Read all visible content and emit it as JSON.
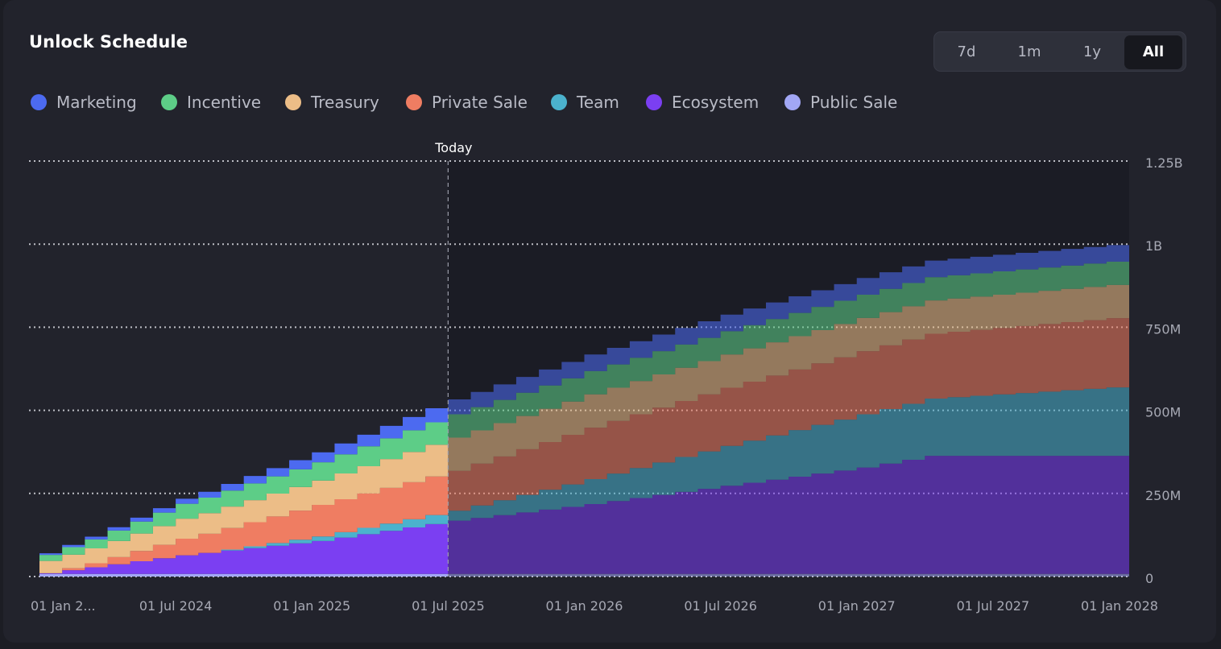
{
  "chart_data": {
    "type": "area",
    "title": "Unlock Schedule",
    "range_options": [
      "7d",
      "1m",
      "1y",
      "All"
    ],
    "range_selected": "All",
    "today_label": "Today",
    "today_date": "2025-07-01",
    "step": "monthly",
    "x_start": "2024-01-01",
    "x_end": "2028-01-01",
    "x_ticks": [
      "01 Jan 2...",
      "01 Jul 2024",
      "01 Jan 2025",
      "01 Jul 2025",
      "01 Jan 2026",
      "01 Jul 2026",
      "01 Jan 2027",
      "01 Jul 2027",
      "01 Jan 2028"
    ],
    "y_ticks": [
      "0",
      "250M",
      "500M",
      "750M",
      "1B",
      "1.25B"
    ],
    "y_tick_values": [
      0,
      250000000,
      500000000,
      750000000,
      1000000000,
      1250000000
    ],
    "ylim": [
      0,
      1250000000
    ],
    "grid": true,
    "legend_position": "top-left",
    "series": [
      {
        "name": "Public Sale",
        "color": "#a2a7f5",
        "points": [
          [
            "2024-01-01",
            8000000
          ],
          [
            "2028-01-01",
            8000000
          ]
        ]
      },
      {
        "name": "Ecosystem",
        "color": "#7b3ff2",
        "points": [
          [
            "2024-01-01",
            2000000
          ],
          [
            "2024-07-01",
            56000000
          ],
          [
            "2025-01-01",
            99000000
          ],
          [
            "2025-07-01",
            160000000
          ],
          [
            "2026-01-01",
            210000000
          ],
          [
            "2026-07-01",
            265000000
          ],
          [
            "2027-01-01",
            320000000
          ],
          [
            "2027-04-01",
            355000000
          ],
          [
            "2028-01-01",
            355000000
          ]
        ]
      },
      {
        "name": "Team",
        "color": "#4bb2cd",
        "points": [
          [
            "2024-01-01",
            0
          ],
          [
            "2024-08-01",
            0
          ],
          [
            "2025-07-01",
            30000000
          ],
          [
            "2026-01-01",
            75000000
          ],
          [
            "2026-07-01",
            120000000
          ],
          [
            "2027-01-01",
            160000000
          ],
          [
            "2028-01-01",
            210000000
          ]
        ]
      },
      {
        "name": "Private Sale",
        "color": "#ef7d62",
        "points": [
          [
            "2024-01-01",
            0
          ],
          [
            "2024-03-01",
            12000000
          ],
          [
            "2024-07-01",
            50000000
          ],
          [
            "2025-01-01",
            95000000
          ],
          [
            "2025-07-01",
            120000000
          ],
          [
            "2026-01-01",
            155000000
          ],
          [
            "2026-07-01",
            175000000
          ],
          [
            "2027-01-01",
            190000000
          ],
          [
            "2028-01-01",
            210000000
          ]
        ]
      },
      {
        "name": "Treasury",
        "color": "#ecbd87",
        "points": [
          [
            "2024-01-01",
            37000000
          ],
          [
            "2024-07-01",
            60000000
          ],
          [
            "2025-01-01",
            73000000
          ],
          [
            "2025-07-01",
            100000000
          ],
          [
            "2026-01-01",
            100000000
          ],
          [
            "2026-07-01",
            100000000
          ],
          [
            "2027-01-01",
            100000000
          ],
          [
            "2028-01-01",
            100000000
          ]
        ]
      },
      {
        "name": "Incentive",
        "color": "#5dcd87",
        "points": [
          [
            "2024-01-01",
            18000000
          ],
          [
            "2024-07-01",
            45000000
          ],
          [
            "2025-01-01",
            55000000
          ],
          [
            "2025-07-01",
            70000000
          ],
          [
            "2026-01-01",
            70000000
          ],
          [
            "2026-07-01",
            70000000
          ],
          [
            "2027-01-01",
            70000000
          ],
          [
            "2028-01-01",
            70000000
          ]
        ]
      },
      {
        "name": "Marketing",
        "color": "#4c6af0",
        "points": [
          [
            "2024-01-01",
            5000000
          ],
          [
            "2024-07-01",
            15000000
          ],
          [
            "2025-01-01",
            30000000
          ],
          [
            "2025-07-01",
            45000000
          ],
          [
            "2026-01-01",
            50000000
          ],
          [
            "2026-07-01",
            50000000
          ],
          [
            "2027-01-01",
            50000000
          ],
          [
            "2028-01-01",
            50000000
          ]
        ]
      }
    ],
    "legend_order": [
      "Marketing",
      "Incentive",
      "Treasury",
      "Private Sale",
      "Team",
      "Ecosystem",
      "Public Sale"
    ]
  }
}
